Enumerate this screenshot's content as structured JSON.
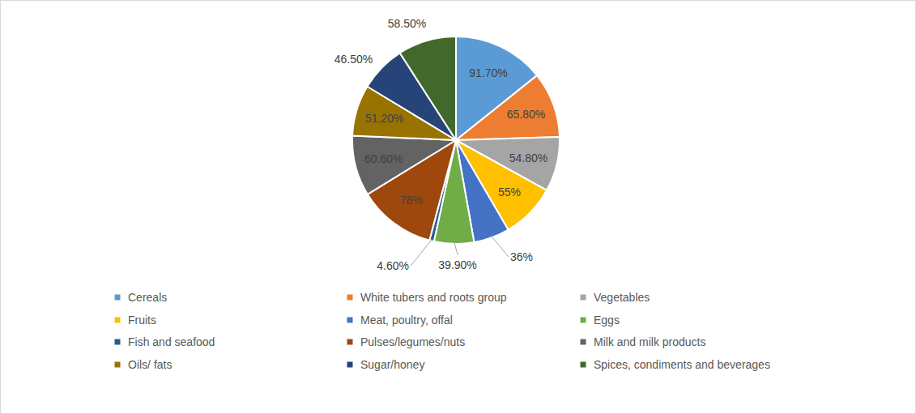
{
  "chart_data": {
    "type": "pie",
    "categories": [
      "Cereals",
      "White tubers and roots group",
      "Vegetables",
      "Fruits",
      "Meat, poultry, offal",
      "Eggs",
      "Fish and seafood",
      "Pulses/legumes/nuts",
      "Milk and milk products",
      "Oils/ fats",
      "Sugar/honey",
      "Spices, condiments and beverages"
    ],
    "values": [
      91.7,
      65.8,
      54.8,
      55,
      36,
      39.9,
      4.6,
      78,
      60.6,
      51.2,
      46.5,
      58.5
    ],
    "value_labels": [
      "91.70%",
      "65.80%",
      "54.80%",
      "55%",
      "36%",
      "39.90%",
      "4.60%",
      "78%",
      "60.60%",
      "51.20%",
      "46.50%",
      "58.50%"
    ],
    "colors": [
      "#5b9bd5",
      "#ed7d31",
      "#a5a5a5",
      "#ffc000",
      "#4472c4",
      "#70ad47",
      "#255e91",
      "#9e480e",
      "#636363",
      "#997300",
      "#264478",
      "#43682b"
    ],
    "data_labels": true,
    "legend": "bottom"
  }
}
